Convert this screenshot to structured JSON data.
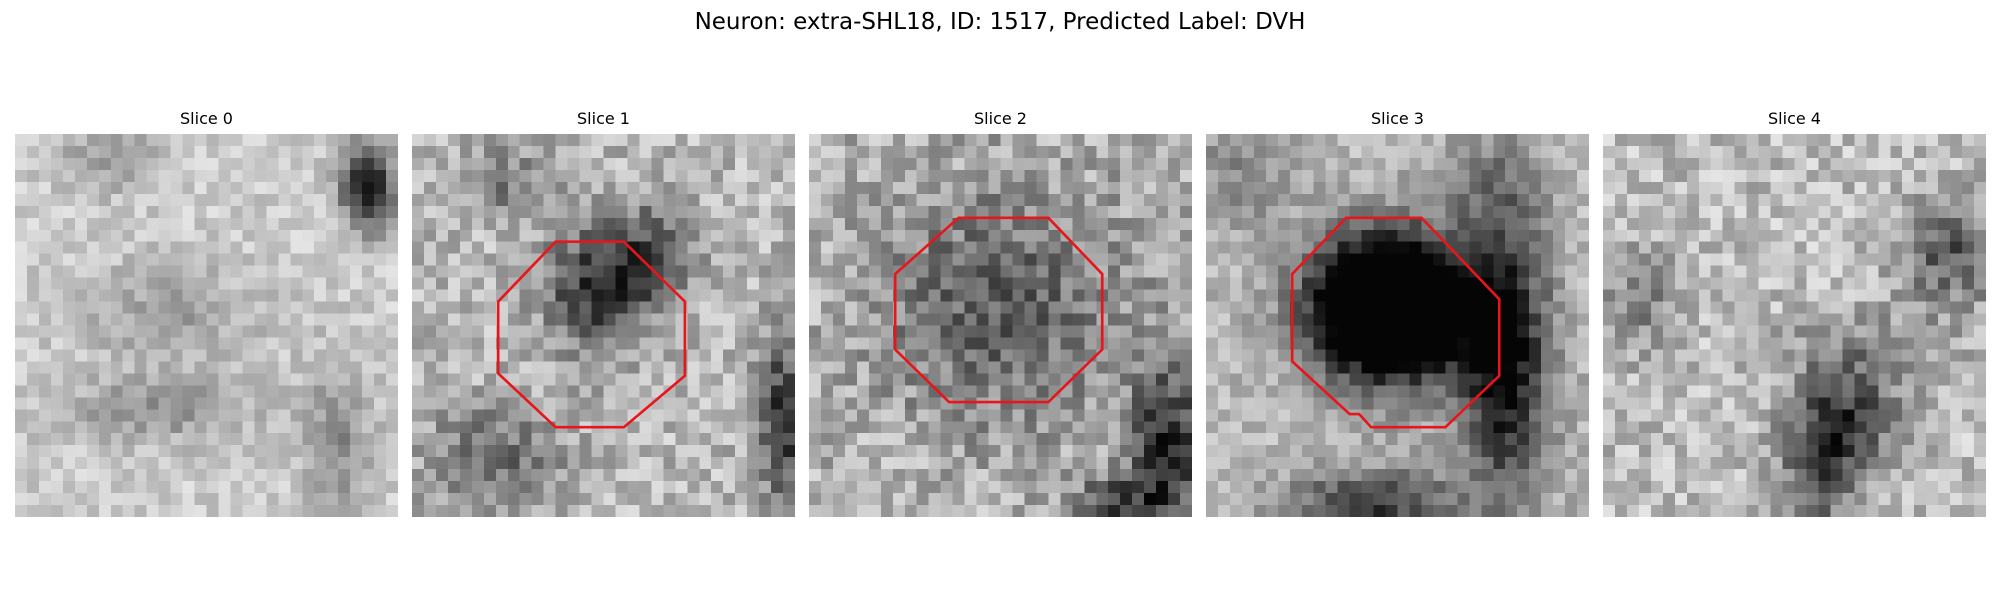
{
  "figure": {
    "title": "Neuron: extra-SHL18, ID: 1517, Predicted Label: DVH"
  },
  "outline_color": "#e8151b",
  "panels": [
    {
      "title": "Slice 0",
      "has_outline": false
    },
    {
      "title": "Slice 1",
      "has_outline": true
    },
    {
      "title": "Slice 2",
      "has_outline": true
    },
    {
      "title": "Slice 3",
      "has_outline": true
    },
    {
      "title": "Slice 4",
      "has_outline": false
    }
  ]
}
